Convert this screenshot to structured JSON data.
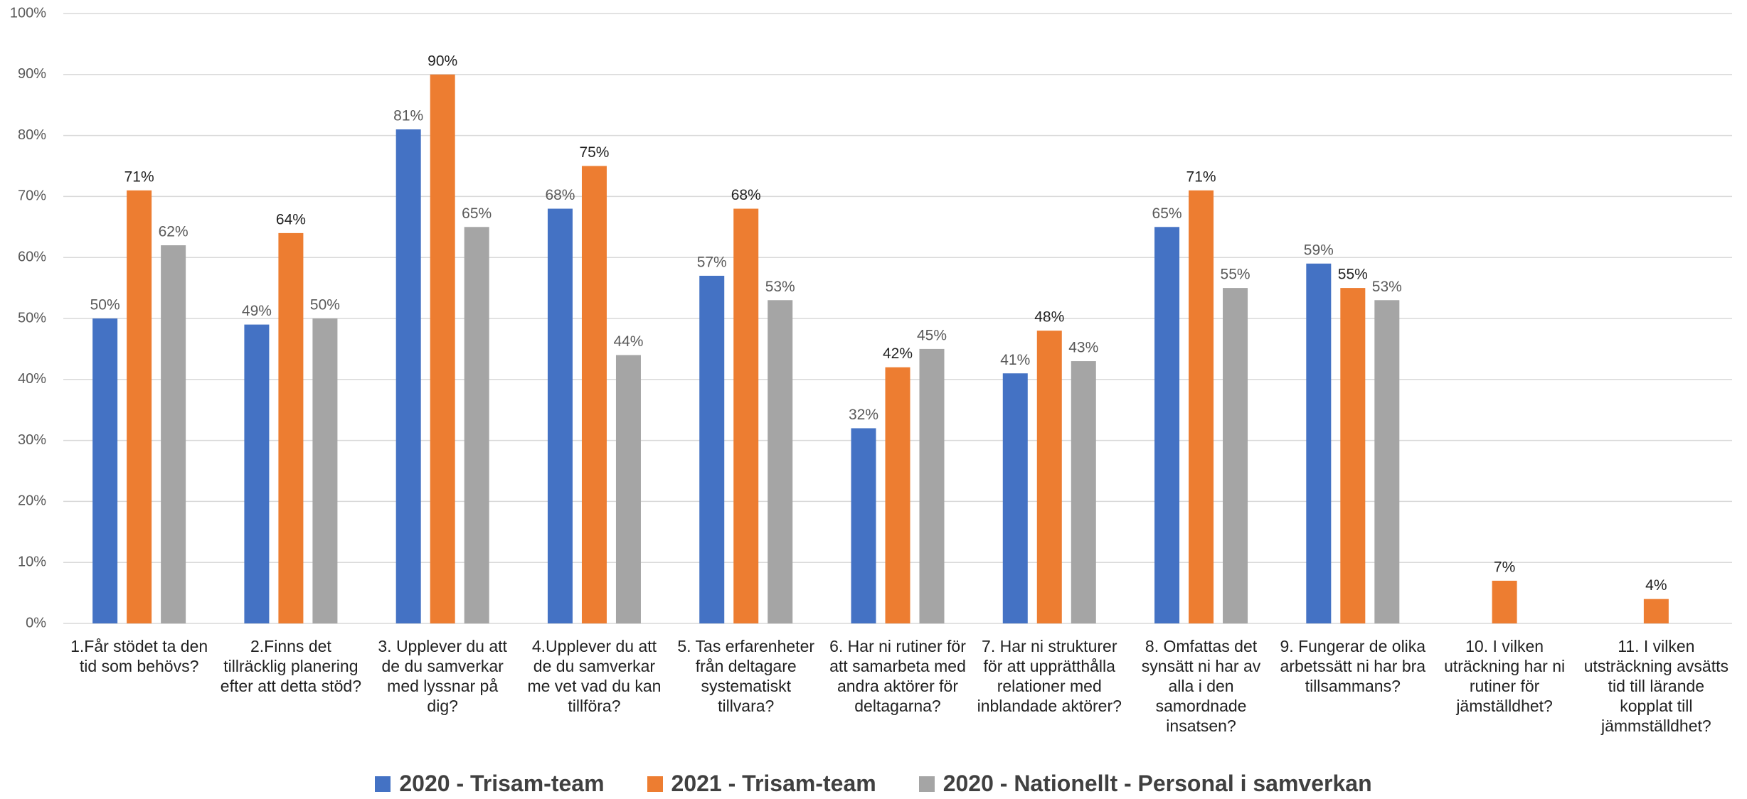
{
  "chart_data": {
    "type": "bar",
    "categories": [
      "1.Får stödet ta den tid som behövs?",
      "2.Finns det tillräcklig planering efter att detta stöd?",
      "3. Upplever du att de du samverkar med lyssnar på dig?",
      "4.Upplever du att de du samverkar me vet vad du kan tillföra?",
      "5. Tas erfarenheter från deltagare systematiskt tillvara?",
      "6. Har ni rutiner för att samarbeta med andra aktörer för deltagarna?",
      "7. Har ni strukturer för att upprätthålla relationer med inblandade aktörer?",
      "8. Omfattas det synsätt ni har av alla i den samordnade insatsen?",
      "9. Fungerar de olika arbetssätt ni har bra tillsammans?",
      "10. I vilken uträckning har ni rutiner för jämställdhet?",
      "11. I vilken utsträckning avsätts tid till lärande kopplat till jämmställdhet?"
    ],
    "series": [
      {
        "name": "2020 - Trisam-team",
        "color": "#4472c4",
        "values": [
          50,
          49,
          81,
          68,
          57,
          32,
          41,
          65,
          59,
          null,
          null
        ],
        "value_labels": [
          "50%",
          "49%",
          "81%",
          "68%",
          "57%",
          "32%",
          "41%",
          "65%",
          "59%",
          null,
          null
        ]
      },
      {
        "name": "2021 - Trisam-team",
        "color": "#ed7d31",
        "values": [
          71,
          64,
          90,
          75,
          68,
          42,
          48,
          71,
          55,
          7,
          4
        ],
        "value_labels": [
          "71%",
          "64%",
          "90%",
          "75%",
          "68%",
          "42%",
          "48%",
          "71%",
          "55%",
          "7%",
          "4%"
        ]
      },
      {
        "name": "2020 - Nationellt - Personal i samverkan",
        "color": "#a5a5a5",
        "values": [
          62,
          50,
          65,
          44,
          53,
          45,
          43,
          55,
          53,
          null,
          null
        ],
        "value_labels": [
          "62%",
          "50%",
          "65%",
          "44%",
          "53%",
          "45%",
          "43%",
          "55%",
          "53%",
          null,
          null
        ]
      }
    ],
    "ylim": [
      0,
      100
    ],
    "yticks": [
      {
        "value": 0,
        "label": "0%"
      },
      {
        "value": 10,
        "label": "10%"
      },
      {
        "value": 20,
        "label": "20%"
      },
      {
        "value": 30,
        "label": "30%"
      },
      {
        "value": 40,
        "label": "40%"
      },
      {
        "value": 50,
        "label": "50%"
      },
      {
        "value": 60,
        "label": "60%"
      },
      {
        "value": 70,
        "label": "70%"
      },
      {
        "value": 80,
        "label": "80%"
      },
      {
        "value": 90,
        "label": "90%"
      },
      {
        "value": 100,
        "label": "100%"
      }
    ],
    "grid": true
  }
}
